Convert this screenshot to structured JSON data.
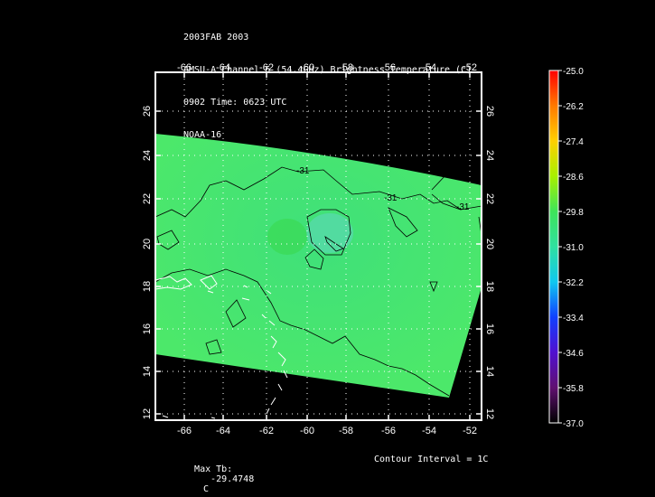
{
  "title": {
    "lines": [
      "2003FAB 2003",
      "AMSU-A Channel 6 (54.4GHz) Brightness Temperature (C)",
      "0902 Time: 0623 UTC",
      "NOAA-16"
    ]
  },
  "map": {
    "lon_ticks": [
      "-66",
      "-64",
      "-62",
      "-60",
      "-58",
      "-56",
      "-54",
      "-52"
    ],
    "lat_ticks": [
      "12",
      "14",
      "16",
      "18",
      "20",
      "22",
      "24",
      "26"
    ],
    "contour_labels": [
      "-31",
      "-31",
      "-31"
    ],
    "swath_color": "#44e472"
  },
  "colorbar": {
    "labels": [
      "-25.0",
      "-26.2",
      "-27.4",
      "-28.6",
      "-29.8",
      "-31.0",
      "-32.2",
      "-33.4",
      "-34.6",
      "-35.8",
      "-37.0"
    ],
    "colors": [
      "#ff0000",
      "#ff7a00",
      "#ffd000",
      "#a8f000",
      "#3ee45a",
      "#30e0a0",
      "#10c8f0",
      "#1040ff",
      "#5010d0",
      "#601070",
      "#000000"
    ]
  },
  "footer": {
    "max_label": "Max Tb:",
    "max_value": "-29.4748",
    "max_unit": "C",
    "contour_interval": "Contour Interval = 1C"
  }
}
